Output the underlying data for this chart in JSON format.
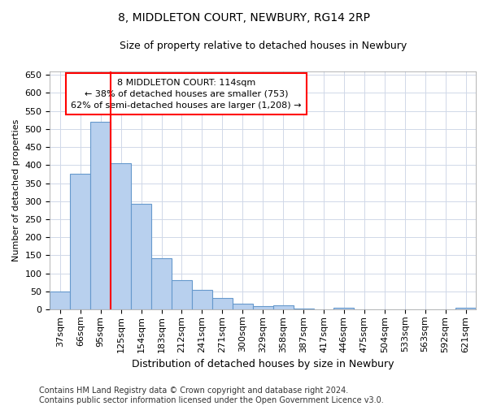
{
  "title1": "8, MIDDLETON COURT, NEWBURY, RG14 2RP",
  "title2": "Size of property relative to detached houses in Newbury",
  "xlabel": "Distribution of detached houses by size in Newbury",
  "ylabel": "Number of detached properties",
  "categories": [
    "37sqm",
    "66sqm",
    "95sqm",
    "125sqm",
    "154sqm",
    "183sqm",
    "212sqm",
    "241sqm",
    "271sqm",
    "300sqm",
    "329sqm",
    "358sqm",
    "387sqm",
    "417sqm",
    "446sqm",
    "475sqm",
    "504sqm",
    "533sqm",
    "563sqm",
    "592sqm",
    "621sqm"
  ],
  "values": [
    50,
    375,
    520,
    405,
    293,
    142,
    81,
    54,
    31,
    16,
    8,
    12,
    2,
    0,
    4,
    1,
    1,
    0,
    0,
    0,
    5
  ],
  "bar_color": "#b8d0ee",
  "bar_edge_color": "#6699cc",
  "vline_color": "red",
  "vline_x_index": 2.5,
  "annotation_line1": "8 MIDDLETON COURT: 114sqm",
  "annotation_line2": "← 38% of detached houses are smaller (753)",
  "annotation_line3": "62% of semi-detached houses are larger (1,208) →",
  "annotation_box_color": "white",
  "annotation_box_edge_color": "red",
  "ylim": [
    0,
    660
  ],
  "yticks": [
    0,
    50,
    100,
    150,
    200,
    250,
    300,
    350,
    400,
    450,
    500,
    550,
    600,
    650
  ],
  "footnote": "Contains HM Land Registry data © Crown copyright and database right 2024.\nContains public sector information licensed under the Open Government Licence v3.0.",
  "background_color": "#ffffff",
  "plot_bg_color": "#ffffff",
  "grid_color": "#d0d8e8",
  "title_fontsize": 10,
  "subtitle_fontsize": 9,
  "axis_label_fontsize": 8,
  "tick_fontsize": 8,
  "annotation_fontsize": 8,
  "footnote_fontsize": 7
}
